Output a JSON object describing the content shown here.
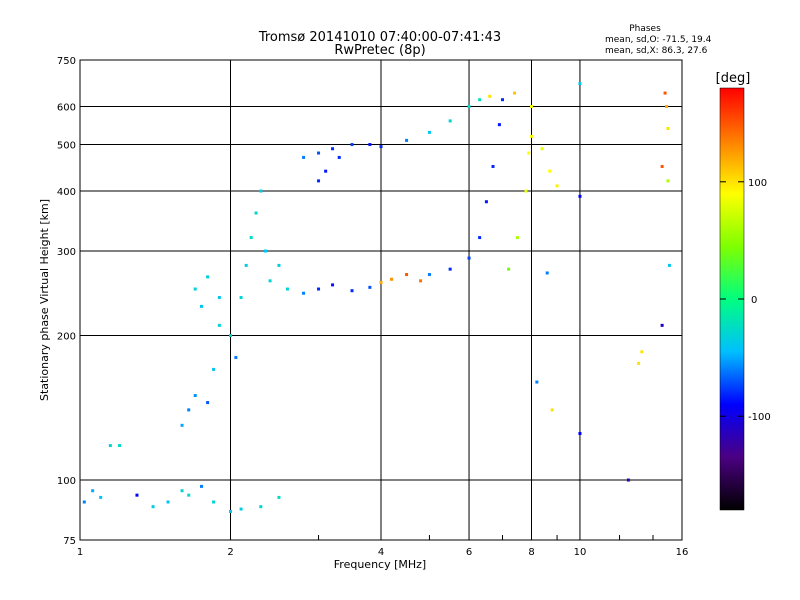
{
  "chart_data": {
    "type": "scatter",
    "title": "Tromsø 20141010 07:40:00-07:41:43",
    "subtitle": "RwPretec (8p)",
    "xlabel": "Frequency [MHz]",
    "ylabel": "Stationary phase Virtual Height [km]",
    "x_scale": "log",
    "y_scale": "log",
    "xlim": [
      1,
      16
    ],
    "ylim": [
      75,
      750
    ],
    "grid": true,
    "x_ticks": [
      1,
      2,
      4,
      6,
      8,
      10,
      16
    ],
    "y_ticks": [
      75,
      100,
      200,
      300,
      400,
      500,
      600,
      750
    ],
    "phases": {
      "header": "Phases",
      "line_o": "mean, sd,O: -71.5, 19.4",
      "line_x": "mean, sd,X:  86.3, 27.6"
    },
    "colorbar": {
      "label": "[deg]",
      "range": [
        -180,
        180
      ],
      "ticks": [
        -100,
        0,
        100
      ],
      "colors": [
        "#000000",
        "#4b0082",
        "#0000ff",
        "#00bfff",
        "#00ff7f",
        "#7fff00",
        "#ffff00",
        "#ff7f00",
        "#ff0000"
      ]
    },
    "series": [
      {
        "name": "",
        "points": [
          [
            1.02,
            90,
            -60
          ],
          [
            1.06,
            95,
            -50
          ],
          [
            1.1,
            92,
            -40
          ],
          [
            1.15,
            118,
            -30
          ],
          [
            1.2,
            118,
            -25
          ],
          [
            1.3,
            93,
            -90
          ],
          [
            1.4,
            88,
            -35
          ],
          [
            1.5,
            90,
            -40
          ],
          [
            1.6,
            95,
            -30
          ],
          [
            1.65,
            93,
            -25
          ],
          [
            1.75,
            97,
            -60
          ],
          [
            1.85,
            90,
            -30
          ],
          [
            2.0,
            86,
            -40
          ],
          [
            2.1,
            87,
            -35
          ],
          [
            2.3,
            88,
            -30
          ],
          [
            2.5,
            92,
            -25
          ],
          [
            1.6,
            130,
            -50
          ],
          [
            1.65,
            140,
            -60
          ],
          [
            1.7,
            150,
            -55
          ],
          [
            1.8,
            145,
            -70
          ],
          [
            1.85,
            170,
            -40
          ],
          [
            1.9,
            210,
            -30
          ],
          [
            1.75,
            230,
            -40
          ],
          [
            1.7,
            250,
            -30
          ],
          [
            1.8,
            265,
            -35
          ],
          [
            1.9,
            240,
            -40
          ],
          [
            2.0,
            200,
            -30
          ],
          [
            2.05,
            180,
            -60
          ],
          [
            2.1,
            240,
            -30
          ],
          [
            2.15,
            280,
            -35
          ],
          [
            2.2,
            320,
            -25
          ],
          [
            2.25,
            360,
            -30
          ],
          [
            2.3,
            400,
            -35
          ],
          [
            2.35,
            300,
            -40
          ],
          [
            2.4,
            260,
            -30
          ],
          [
            2.5,
            280,
            -35
          ],
          [
            2.6,
            250,
            -30
          ],
          [
            2.8,
            245,
            -60
          ],
          [
            3.0,
            250,
            -80
          ],
          [
            3.2,
            255,
            -85
          ],
          [
            3.5,
            248,
            -80
          ],
          [
            3.8,
            252,
            -70
          ],
          [
            4.0,
            258,
            120
          ],
          [
            4.2,
            262,
            130
          ],
          [
            4.5,
            268,
            150
          ],
          [
            4.8,
            260,
            140
          ],
          [
            5.0,
            268,
            -60
          ],
          [
            5.5,
            275,
            -80
          ],
          [
            6.0,
            290,
            -75
          ],
          [
            6.3,
            320,
            -80
          ],
          [
            6.5,
            380,
            -85
          ],
          [
            6.7,
            450,
            -80
          ],
          [
            6.9,
            550,
            -85
          ],
          [
            7.0,
            620,
            -80
          ],
          [
            7.2,
            275,
            40
          ],
          [
            7.5,
            320,
            60
          ],
          [
            7.8,
            400,
            80
          ],
          [
            7.9,
            480,
            90
          ],
          [
            8.0,
            600,
            85
          ],
          [
            2.8,
            470,
            -60
          ],
          [
            3.0,
            480,
            -70
          ],
          [
            3.2,
            490,
            -80
          ],
          [
            3.5,
            500,
            -75
          ],
          [
            3.8,
            500,
            -85
          ],
          [
            4.0,
            495,
            -80
          ],
          [
            4.5,
            510,
            -60
          ],
          [
            5.0,
            530,
            -40
          ],
          [
            5.5,
            560,
            -30
          ],
          [
            6.0,
            600,
            -25
          ],
          [
            6.3,
            620,
            -20
          ],
          [
            3.0,
            420,
            -80
          ],
          [
            3.1,
            440,
            -85
          ],
          [
            3.3,
            470,
            -80
          ],
          [
            6.6,
            630,
            100
          ],
          [
            7.4,
            640,
            110
          ],
          [
            8.0,
            520,
            90
          ],
          [
            8.4,
            490,
            80
          ],
          [
            8.7,
            440,
            90
          ],
          [
            9.0,
            410,
            95
          ],
          [
            10.0,
            670,
            -40
          ],
          [
            10.0,
            390,
            -90
          ],
          [
            10.0,
            125,
            -90
          ],
          [
            8.6,
            270,
            -60
          ],
          [
            8.2,
            160,
            -60
          ],
          [
            8.8,
            140,
            100
          ],
          [
            12.5,
            100,
            -120
          ],
          [
            14.8,
            640,
            150
          ],
          [
            14.9,
            600,
            120
          ],
          [
            15.0,
            540,
            100
          ],
          [
            14.6,
            450,
            150
          ],
          [
            15.0,
            420,
            60
          ],
          [
            15.1,
            280,
            -40
          ],
          [
            14.6,
            210,
            -110
          ],
          [
            13.3,
            185,
            100
          ],
          [
            13.1,
            175,
            100
          ]
        ]
      }
    ]
  }
}
